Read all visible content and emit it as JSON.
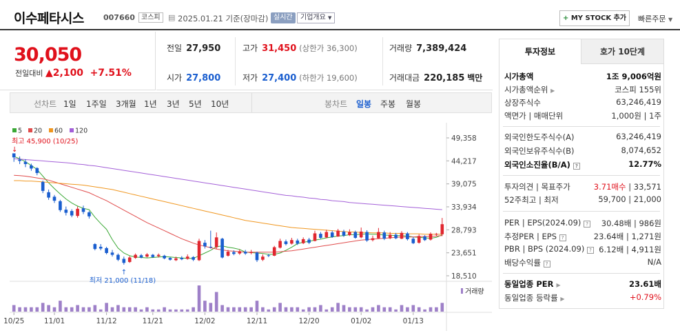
{
  "header": {
    "name": "이수페타시스",
    "code": "007660",
    "market_tag": "코스피",
    "date": "2025.01.21 기준(장마감)",
    "realtime": "실시간",
    "company_info": "기업개요",
    "mystock": "MY STOCK 추가",
    "quick_order": "빠른주문"
  },
  "price": {
    "current": "30,050",
    "prev_label": "전일대비",
    "change": "2,100",
    "change_pct": "+7.51%"
  },
  "summary": {
    "prev_close_label": "전일",
    "prev_close": "27,950",
    "high_label": "고가",
    "high": "31,450",
    "upper_limit": "(상한가 36,300)",
    "volume_label": "거래량",
    "volume": "7,389,424",
    "open_label": "시가",
    "open": "27,800",
    "low_label": "저가",
    "low": "27,400",
    "lower_limit": "(하한가 19,600)",
    "amount_label": "거래대금",
    "amount": "220,185",
    "amount_unit": "백만"
  },
  "periods": {
    "line_label": "선차트",
    "line_items": [
      "1일",
      "1주일",
      "3개월",
      "1년",
      "3년",
      "5년",
      "10년"
    ],
    "candle_label": "봉차트",
    "candle_items": [
      "일봉",
      "주봉",
      "월봉"
    ],
    "selected": "일봉"
  },
  "chart_data": {
    "type": "candlestick",
    "legend": [
      "5",
      "20",
      "60",
      "120"
    ],
    "ma_colors": [
      "#3aa835",
      "#e04b4b",
      "#f0961e",
      "#a35fd8"
    ],
    "y_ticks": [
      "49,358",
      "44,217",
      "39,075",
      "33,934",
      "28,793",
      "23,651",
      "18,510"
    ],
    "ylim": [
      18510,
      49358
    ],
    "x_labels": [
      "10/25",
      "11/01",
      "11/12",
      "11/21",
      "12/02",
      "12/11",
      "12/20",
      "01/02",
      "01/13"
    ],
    "x_label_index": [
      0,
      7,
      16,
      24,
      33,
      42,
      51,
      60,
      69
    ],
    "max_annotation": "최고 45,900 (10/25)",
    "min_annotation": "최저 21,000 (11/18)",
    "volume_label": "거래량",
    "candles": [
      [
        45900,
        45000,
        45900,
        44000
      ],
      [
        44500,
        44200,
        45200,
        43500
      ],
      [
        44000,
        43500,
        44600,
        42800
      ],
      [
        43200,
        42500,
        43600,
        42000
      ],
      [
        42600,
        41500,
        42800,
        41000
      ],
      [
        39500,
        37500,
        39800,
        37000
      ],
      [
        37200,
        36000,
        37800,
        35500
      ],
      [
        36200,
        35300,
        36600,
        34800
      ],
      [
        35200,
        33200,
        35500,
        32800
      ],
      [
        33300,
        32600,
        34000,
        32000
      ],
      [
        33000,
        32000,
        33400,
        31600
      ],
      [
        31900,
        33500,
        34000,
        31500
      ],
      [
        33600,
        32800,
        34200,
        32300
      ],
      [
        32700,
        31800,
        33000,
        31300
      ],
      [
        25600,
        24500,
        25800,
        24200
      ],
      [
        25000,
        24600,
        25600,
        24200
      ],
      [
        24700,
        23600,
        25000,
        23300
      ],
      [
        23700,
        23200,
        24300,
        22800
      ],
      [
        23200,
        22100,
        23500,
        21800
      ],
      [
        22300,
        21400,
        22800,
        21000
      ],
      [
        21600,
        22600,
        22900,
        21400
      ],
      [
        22500,
        23200,
        23500,
        22300
      ],
      [
        23100,
        22600,
        23400,
        22400
      ],
      [
        22800,
        23300,
        23600,
        22600
      ],
      [
        23200,
        22700,
        23400,
        22500
      ],
      [
        22900,
        23200,
        23500,
        22600
      ],
      [
        23000,
        22400,
        23200,
        22200
      ],
      [
        22500,
        22100,
        22700,
        21900
      ],
      [
        22000,
        22400,
        22800,
        21800
      ],
      [
        22500,
        22200,
        22900,
        22000
      ],
      [
        22300,
        22800,
        23300,
        22100
      ],
      [
        22700,
        22100,
        22900,
        21800
      ],
      [
        22000,
        26300,
        26800,
        21800
      ],
      [
        25900,
        25100,
        26500,
        24600
      ],
      [
        25000,
        24900,
        28600,
        24600
      ],
      [
        24900,
        27100,
        28200,
        24500
      ],
      [
        26800,
        22600,
        27000,
        22400
      ],
      [
        23000,
        23900,
        24300,
        22800
      ],
      [
        23800,
        23400,
        24200,
        23100
      ],
      [
        23500,
        24000,
        24400,
        23200
      ],
      [
        23900,
        23500,
        24300,
        23200
      ],
      [
        23600,
        23800,
        24300,
        23300
      ],
      [
        23700,
        22000,
        23900,
        21600
      ],
      [
        22100,
        22800,
        23300,
        21800
      ],
      [
        23100,
        23000,
        23400,
        22700
      ],
      [
        23000,
        24900,
        25200,
        22900
      ],
      [
        24800,
        26300,
        26800,
        24600
      ],
      [
        26200,
        25600,
        26600,
        25300
      ],
      [
        25700,
        26500,
        27000,
        25500
      ],
      [
        26400,
        25700,
        26800,
        25400
      ],
      [
        25800,
        26700,
        27100,
        25600
      ],
      [
        26600,
        25900,
        27000,
        25600
      ],
      [
        26300,
        28000,
        28600,
        26200
      ],
      [
        27900,
        27000,
        28300,
        26800
      ],
      [
        27100,
        28300,
        28800,
        26900
      ],
      [
        28200,
        27200,
        28600,
        27000
      ],
      [
        27300,
        28600,
        29000,
        27200
      ],
      [
        28400,
        27500,
        28800,
        27200
      ],
      [
        27600,
        28300,
        28900,
        27400
      ],
      [
        28300,
        27000,
        28600,
        26800
      ],
      [
        27100,
        28400,
        29300,
        26900
      ],
      [
        28300,
        26400,
        28700,
        26100
      ],
      [
        26500,
        26900,
        27500,
        26200
      ],
      [
        26900,
        28300,
        29200,
        26800
      ],
      [
        28200,
        26800,
        28600,
        26500
      ],
      [
        26900,
        27700,
        28300,
        26700
      ],
      [
        27700,
        26900,
        28100,
        26700
      ],
      [
        26800,
        28100,
        28500,
        26700
      ],
      [
        28000,
        26700,
        28300,
        26400
      ],
      [
        26800,
        25800,
        27200,
        25600
      ],
      [
        25900,
        27400,
        27800,
        25700
      ],
      [
        27300,
        26500,
        27600,
        26300
      ],
      [
        26600,
        27900,
        28200,
        26400
      ],
      [
        27900,
        27900,
        28100,
        27400
      ],
      [
        27800,
        30050,
        31450,
        27400
      ]
    ],
    "volumes": [
      3,
      2,
      2,
      2,
      2,
      4,
      3,
      2,
      5,
      2,
      2,
      3,
      2,
      2,
      3,
      1,
      4,
      2,
      3,
      2,
      2,
      2,
      1,
      2,
      1,
      1,
      2,
      1,
      1,
      1,
      1,
      2,
      12,
      5,
      4,
      9,
      3,
      2,
      2,
      2,
      2,
      2,
      5,
      2,
      1,
      2,
      4,
      2,
      2,
      2,
      1,
      2,
      2,
      3,
      1,
      2,
      4,
      3,
      2,
      2,
      2,
      1,
      2,
      3,
      2,
      2,
      1,
      3,
      2,
      3,
      2,
      1,
      2,
      2,
      4
    ],
    "ma5": [
      45200,
      44700,
      44000,
      43200,
      42300,
      40800,
      39300,
      38000,
      36800,
      35700,
      34800,
      34100,
      33600,
      33300,
      31600,
      30200,
      28900,
      26600,
      24700,
      23600,
      23000,
      22700,
      22600,
      22500,
      22600,
      22700,
      22800,
      22700,
      22600,
      22500,
      22400,
      22400,
      23000,
      23600,
      24200,
      25000,
      25200,
      24900,
      24700,
      24400,
      23800,
      23700,
      23600,
      23500,
      23300,
      23300,
      23600,
      24200,
      24900,
      25700,
      26000,
      26200,
      26500,
      26700,
      27000,
      27200,
      27400,
      27500,
      27700,
      27700,
      27800,
      27900,
      27800,
      27800,
      27600,
      27600,
      27500,
      27500,
      27400,
      27200,
      27100,
      27000,
      26900,
      27100,
      27700
    ],
    "ma20": [
      41000,
      40900,
      40800,
      40600,
      40400,
      40200,
      39900,
      39500,
      39100,
      38700,
      38300,
      37900,
      37500,
      37100,
      36500,
      35900,
      35300,
      34600,
      33900,
      33200,
      32500,
      31800,
      31100,
      30400,
      29800,
      29200,
      28600,
      28000,
      27400,
      26800,
      26300,
      25800,
      25400,
      25100,
      24800,
      24500,
      24300,
      24100,
      24000,
      23900,
      23800,
      23800,
      23800,
      23800,
      23800,
      23800,
      23900,
      24000,
      24100,
      24300,
      24500,
      24700,
      24900,
      25100,
      25300,
      25500,
      25700,
      25900,
      26100,
      26300,
      26500,
      26600,
      26700,
      26800,
      26900,
      27000,
      27100,
      27200,
      27200,
      27200,
      27300,
      27300,
      27300,
      27400,
      27500
    ],
    "ma60": [
      39800,
      39800,
      39700,
      39700,
      39600,
      39500,
      39400,
      39300,
      39200,
      39100,
      39000,
      38900,
      38800,
      38600,
      38400,
      38200,
      38000,
      37800,
      37500,
      37200,
      36900,
      36600,
      36300,
      36000,
      35700,
      35400,
      35100,
      34800,
      34500,
      34200,
      33900,
      33600,
      33300,
      33000,
      32700,
      32400,
      32100,
      31800,
      31500,
      31200,
      30900,
      30700,
      30500,
      30300,
      30100,
      29900,
      29700,
      29500,
      29300,
      29200,
      29100,
      29000,
      28900,
      28800,
      28700,
      28600,
      28500,
      28400,
      28300,
      28300,
      28200,
      28200,
      28100,
      28100,
      28100,
      28000,
      28000,
      28000,
      27900,
      27900,
      27900,
      27800,
      27800,
      27800,
      27800
    ],
    "ma120": [
      44700,
      44600,
      44500,
      44400,
      44300,
      44200,
      44100,
      44000,
      43900,
      43800,
      43700,
      43500,
      43400,
      43200,
      43100,
      42900,
      42700,
      42500,
      42300,
      42100,
      41900,
      41700,
      41500,
      41300,
      41100,
      40900,
      40700,
      40500,
      40300,
      40100,
      39900,
      39700,
      39500,
      39300,
      39100,
      38900,
      38700,
      38500,
      38300,
      38100,
      37900,
      37700,
      37500,
      37300,
      37100,
      36900,
      36700,
      36500,
      36400,
      36200,
      36100,
      35900,
      35800,
      35600,
      35500,
      35300,
      35200,
      35100,
      34900,
      34800,
      34700,
      34600,
      34500,
      34400,
      34300,
      34200,
      34100,
      34000,
      33900,
      33800,
      33700,
      33600,
      33500,
      33400,
      33300
    ]
  },
  "side": {
    "tab_info": "투자정보",
    "tab_quote": "호가 10단계",
    "rows": [
      {
        "l": "시가총액",
        "r": "1조 9,006억원"
      },
      {
        "l": "시가총액순위",
        "r": "코스피 155위"
      },
      {
        "l": "상장주식수",
        "r": "63,246,419"
      },
      {
        "l": "액면가 | 매매단위",
        "r": "1,000원 | 1주"
      },
      {
        "l": "외국인한도주식수(A)",
        "r": "63,246,419"
      },
      {
        "l": "외국인보유주식수(B)",
        "r": "8,074,652"
      },
      {
        "l": "외국인소진율(B/A)",
        "r": "12.77%"
      },
      {
        "l": "투자의견 | 목표주가",
        "r1": "3.71매수",
        "r2": " | 33,571"
      },
      {
        "l": "52주최고 | 최저",
        "r": "59,700 | 21,000"
      },
      {
        "l": "PER | EPS(2024.09)",
        "r": "30.48배 | 986원"
      },
      {
        "l": "추정PER | EPS",
        "r": "23.64배 | 1,271원"
      },
      {
        "l": "PBR | BPS (2024.09)",
        "r": "6.12배 | 4,911원"
      },
      {
        "l": "배당수익률",
        "r": "N/A"
      },
      {
        "l": "동일업종 PER",
        "r": "23.61배"
      },
      {
        "l": "동일업종 등락률",
        "r": "+0.79%"
      }
    ]
  }
}
